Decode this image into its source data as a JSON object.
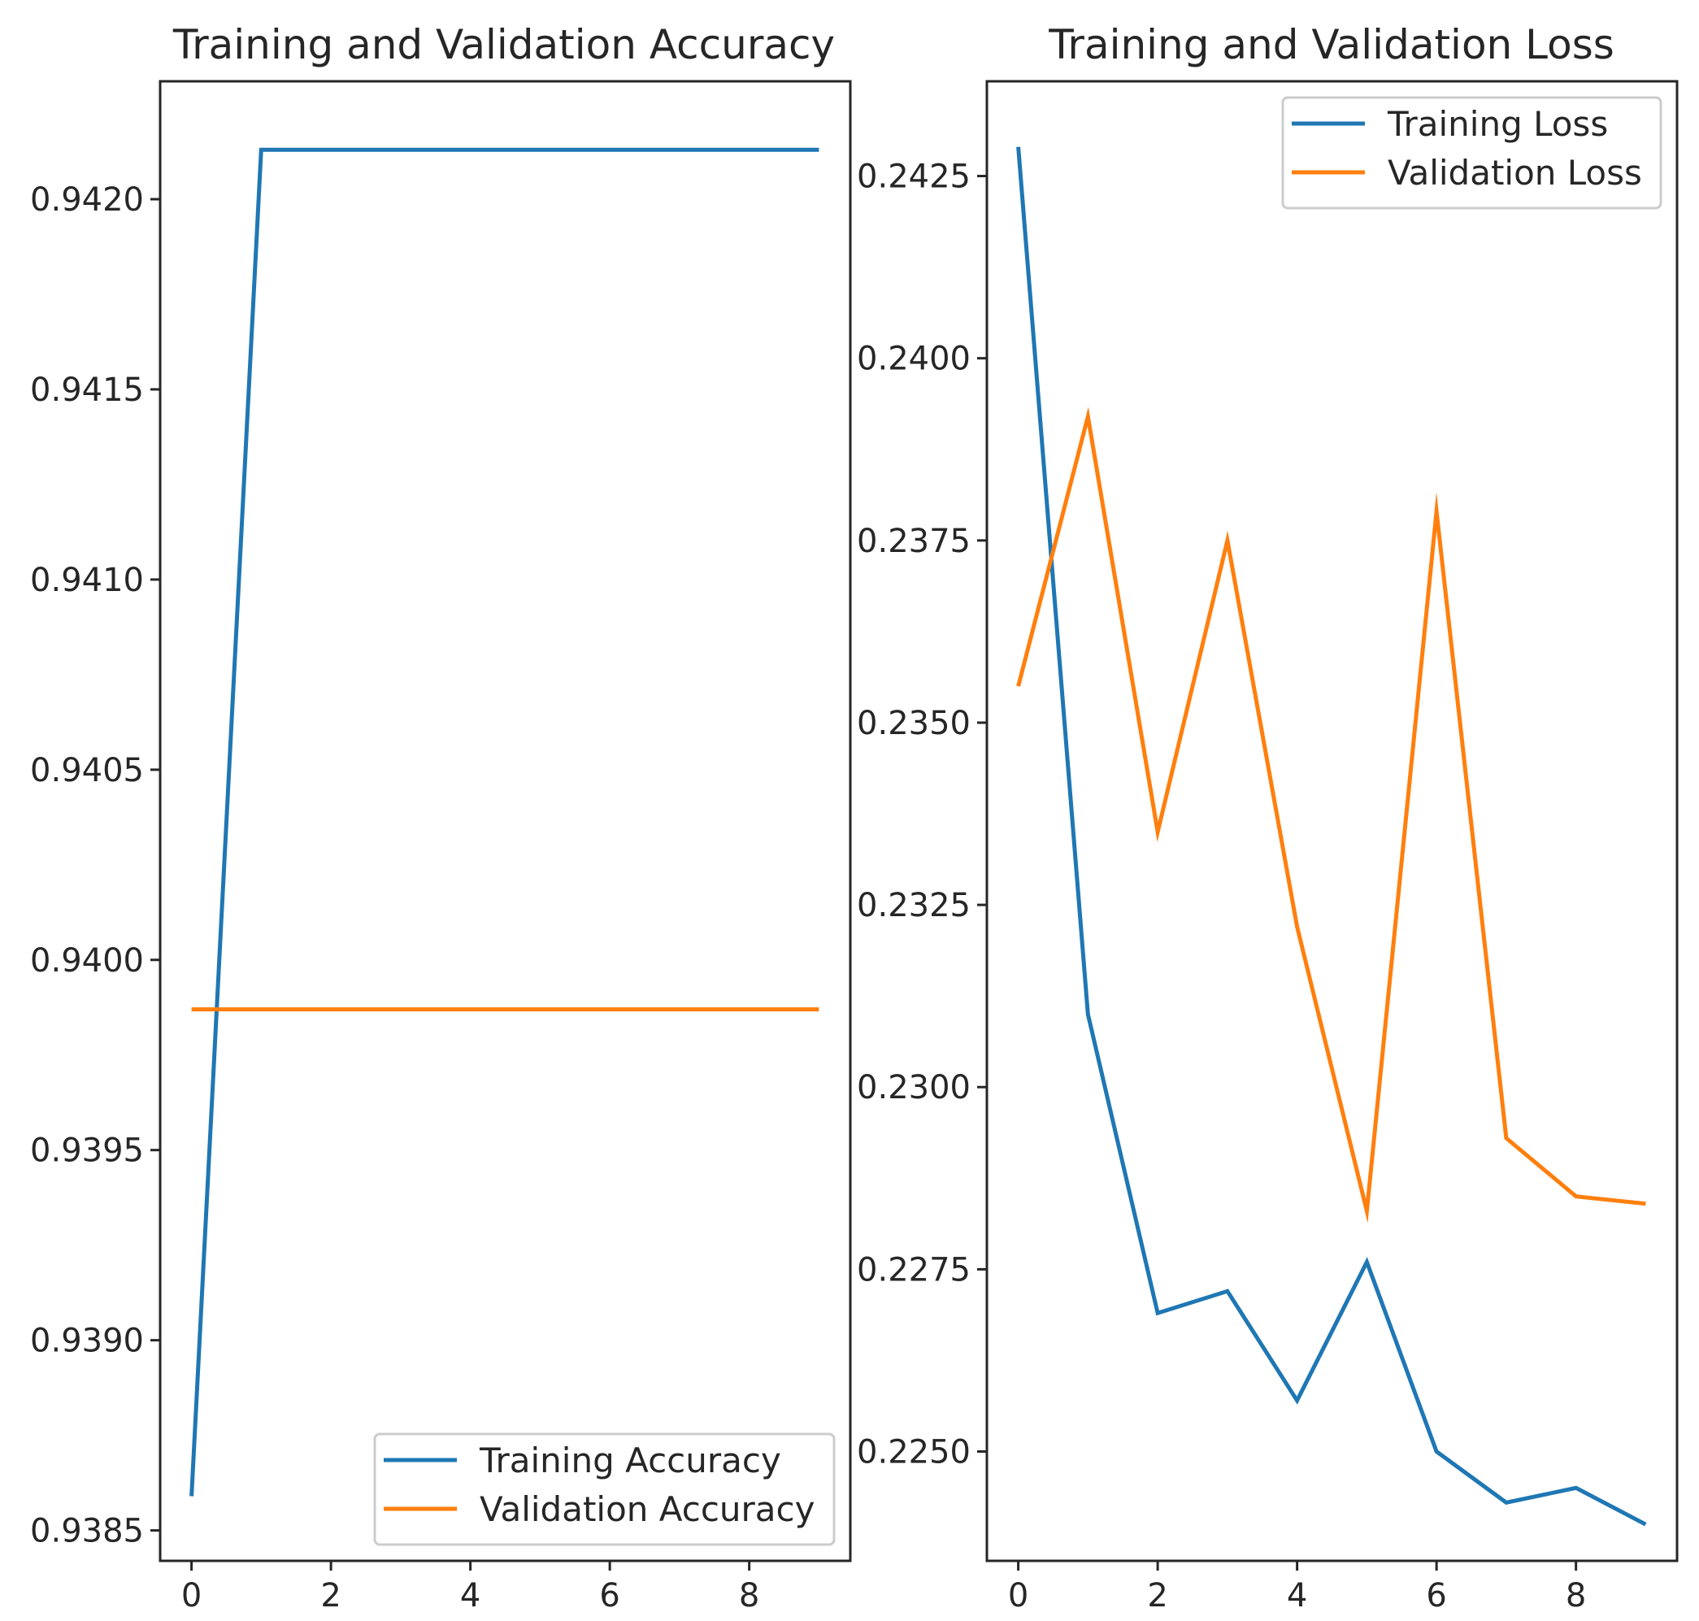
{
  "colors": {
    "training": "#1f77b4",
    "validation": "#ff7f0e",
    "axes": "#262626",
    "legend_border": "#cccccc"
  },
  "chart_data": [
    {
      "type": "line",
      "title": "Training and Validation Accuracy",
      "xlabel": "",
      "ylabel": "",
      "x": [
        0,
        1,
        2,
        3,
        4,
        5,
        6,
        7,
        8,
        9
      ],
      "series": [
        {
          "name": "Training Accuracy",
          "color": "#1f77b4",
          "values": [
            0.93859,
            0.94213,
            0.94213,
            0.94213,
            0.94213,
            0.94213,
            0.94213,
            0.94213,
            0.94213,
            0.94213
          ]
        },
        {
          "name": "Validation Accuracy",
          "color": "#ff7f0e",
          "values": [
            0.93987,
            0.93987,
            0.93987,
            0.93987,
            0.93987,
            0.93987,
            0.93987,
            0.93987,
            0.93987,
            0.93987
          ]
        }
      ],
      "xticks": [
        0,
        2,
        4,
        6,
        8
      ],
      "xtick_labels": [
        "0",
        "2",
        "4",
        "6",
        "8"
      ],
      "yticks": [
        0.9385,
        0.939,
        0.9395,
        0.94,
        0.9405,
        0.941,
        0.9415,
        0.942
      ],
      "ytick_labels": [
        "0.9385",
        "0.9390",
        "0.9395",
        "0.9400",
        "0.9405",
        "0.9410",
        "0.9415",
        "0.9420"
      ],
      "xlim": [
        -0.45,
        9.45
      ],
      "ylim": [
        0.93842,
        0.94231
      ],
      "grid": false,
      "legend_position": "lower right"
    },
    {
      "type": "line",
      "title": "Training and Validation Loss",
      "xlabel": "",
      "ylabel": "",
      "x": [
        0,
        1,
        2,
        3,
        4,
        5,
        6,
        7,
        8,
        9
      ],
      "series": [
        {
          "name": "Training Loss",
          "color": "#1f77b4",
          "values": [
            0.2429,
            0.231,
            0.2269,
            0.2272,
            0.2257,
            0.2276,
            0.225,
            0.2243,
            0.2245,
            0.224
          ]
        },
        {
          "name": "Validation Loss",
          "color": "#ff7f0e",
          "values": [
            0.2355,
            0.2392,
            0.2335,
            0.2375,
            0.2322,
            0.2283,
            0.2379,
            0.2293,
            0.2285,
            0.2284
          ]
        }
      ],
      "xticks": [
        0,
        2,
        4,
        6,
        8
      ],
      "xtick_labels": [
        "0",
        "2",
        "4",
        "6",
        "8"
      ],
      "yticks": [
        0.225,
        0.2275,
        0.23,
        0.2325,
        0.235,
        0.2375,
        0.24,
        0.2425
      ],
      "ytick_labels": [
        "0.2250",
        "0.2275",
        "0.2300",
        "0.2325",
        "0.2350",
        "0.2375",
        "0.2400",
        "0.2425"
      ],
      "xlim": [
        -0.45,
        9.45
      ],
      "ylim": [
        0.2235,
        0.2438
      ],
      "grid": false,
      "legend_position": "upper right"
    }
  ]
}
